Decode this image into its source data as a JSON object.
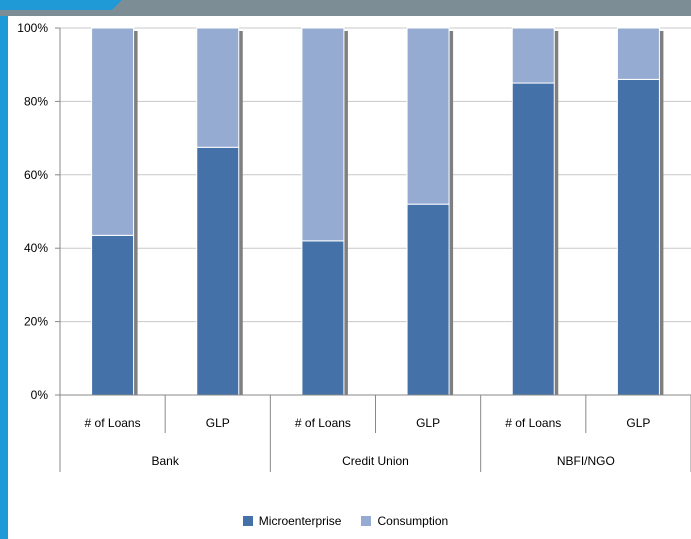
{
  "chart_data": {
    "type": "bar",
    "stacked": true,
    "percent_stacked": true,
    "groups": [
      "Bank",
      "Credit Union",
      "NBFI/NGO"
    ],
    "categories": [
      "# of Loans",
      "GLP",
      "# of Loans",
      "GLP",
      "# of Loans",
      "GLP"
    ],
    "category_group": [
      0,
      0,
      1,
      1,
      2,
      2
    ],
    "series": [
      {
        "name": "Microenterprise",
        "values": [
          43.5,
          67.5,
          42,
          52,
          85,
          86
        ],
        "color": "#4472a8"
      },
      {
        "name": "Consumption",
        "values": [
          56.5,
          32.5,
          58,
          48,
          15,
          14
        ],
        "color": "#95abd2"
      }
    ],
    "yticks": [
      "0%",
      "20%",
      "40%",
      "60%",
      "80%",
      "100%"
    ],
    "ylim": [
      0,
      100
    ],
    "grid": true,
    "legend_position": "bottom"
  },
  "colors": {
    "frame_bg": "#1f9ad6",
    "header_bar": "#7d8d95",
    "grid": "#c8c8c8",
    "axis": "#888888",
    "bar_shadow": "#7f7f7f"
  }
}
